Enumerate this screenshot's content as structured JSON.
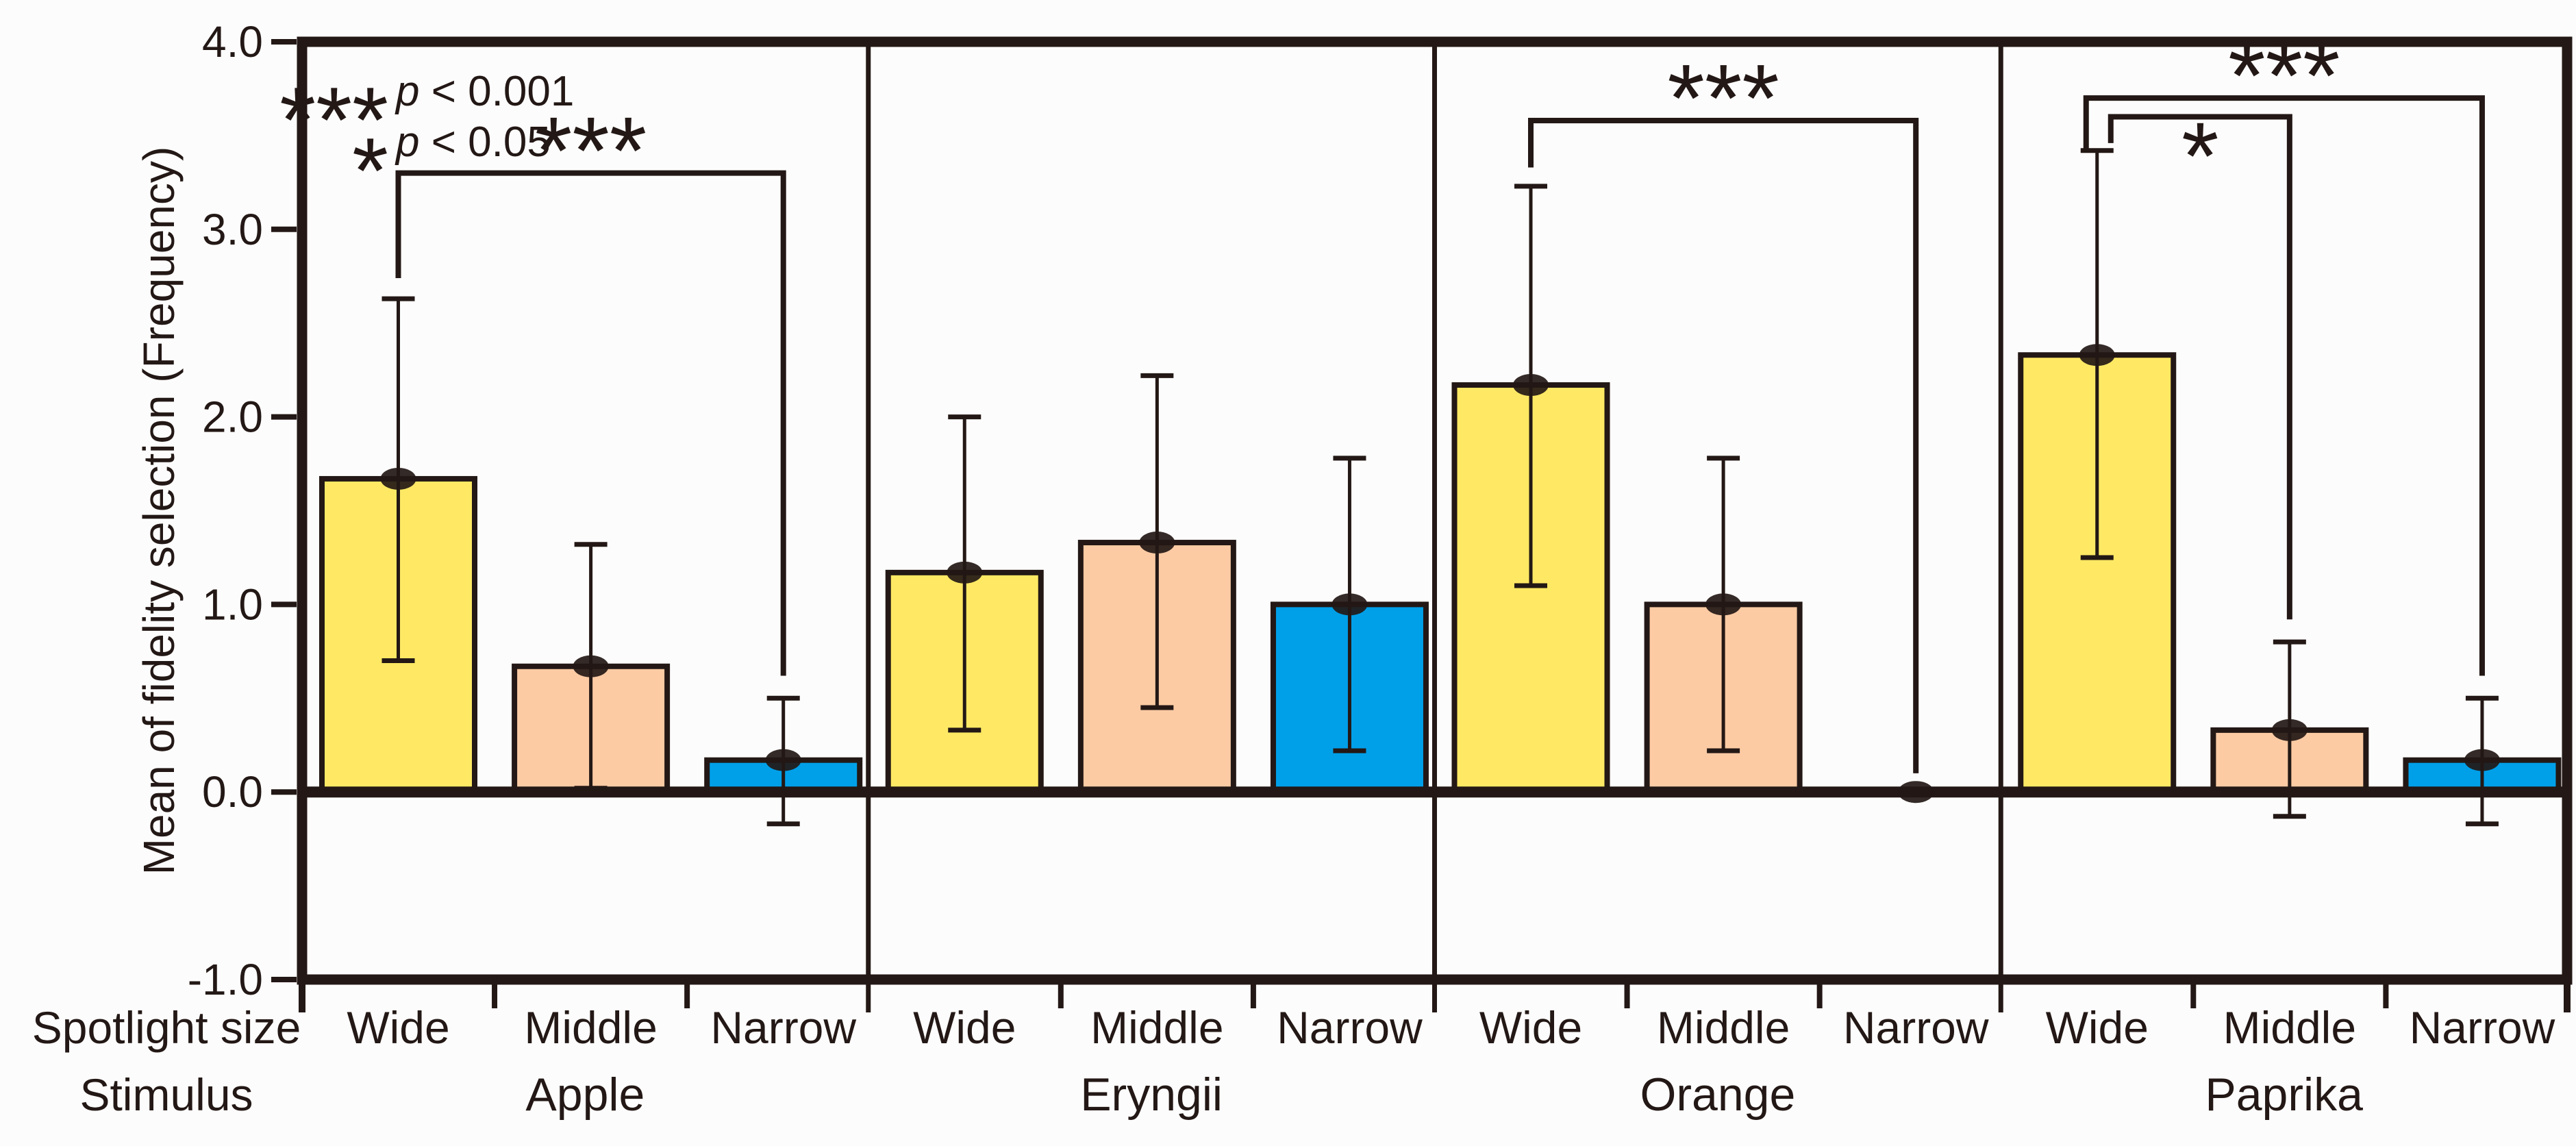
{
  "chart_data": {
    "type": "bar",
    "title": "",
    "ylabel": "Mean of fidelity selection (Frequency)",
    "xlabel": "",
    "ylim": [
      -1.0,
      4.0
    ],
    "y_ticks": [
      {
        "value": 4.0,
        "label": "4.0"
      },
      {
        "value": 3.0,
        "label": "3.0"
      },
      {
        "value": 2.0,
        "label": "2.0"
      },
      {
        "value": 1.0,
        "label": "1.0"
      },
      {
        "value": 0.0,
        "label": "0.0"
      },
      {
        "value": -1.0,
        "label": "-1.0"
      }
    ],
    "grid": false,
    "legend_position": "top-left-inside",
    "axis_rows": {
      "spotlight_size_label": "Spotlight size",
      "stimulus_label": "Stimulus"
    },
    "spotlight_sizes": [
      "Wide",
      "Middle",
      "Narrow"
    ],
    "colors": {
      "wide_bar": "#FFE964",
      "middle_bar": "#FCCBA4",
      "narrow_bar": "#00A0E9",
      "ink": "#231815",
      "background": "#FCFCFC"
    },
    "groups": [
      {
        "stimulus": "Apple",
        "bars": [
          {
            "size": "Wide",
            "mean": 1.67,
            "err_low": 0.7,
            "err_high": 2.63
          },
          {
            "size": "Middle",
            "mean": 0.67,
            "err_low": 0.02,
            "err_high": 1.32
          },
          {
            "size": "Narrow",
            "mean": 0.17,
            "err_low": -0.17,
            "err_high": 0.5
          }
        ]
      },
      {
        "stimulus": "Eryngii",
        "bars": [
          {
            "size": "Wide",
            "mean": 1.17,
            "err_low": 0.33,
            "err_high": 2.0
          },
          {
            "size": "Middle",
            "mean": 1.33,
            "err_low": 0.45,
            "err_high": 2.22
          },
          {
            "size": "Narrow",
            "mean": 1.0,
            "err_low": 0.22,
            "err_high": 1.78
          }
        ]
      },
      {
        "stimulus": "Orange",
        "bars": [
          {
            "size": "Wide",
            "mean": 2.17,
            "err_low": 1.1,
            "err_high": 3.23
          },
          {
            "size": "Middle",
            "mean": 1.0,
            "err_low": 0.22,
            "err_high": 1.78
          },
          {
            "size": "Narrow",
            "mean": 0.0,
            "err_low": null,
            "err_high": null,
            "marker_only": true
          }
        ]
      },
      {
        "stimulus": "Paprika",
        "bars": [
          {
            "size": "Wide",
            "mean": 2.33,
            "err_low": 1.25,
            "err_high": 3.42
          },
          {
            "size": "Middle",
            "mean": 0.33,
            "err_low": -0.13,
            "err_high": 0.8
          },
          {
            "size": "Narrow",
            "mean": 0.17,
            "err_low": -0.17,
            "err_high": 0.5
          }
        ]
      }
    ],
    "significance_legend": [
      {
        "symbol": "***",
        "text": "p < 0.001"
      },
      {
        "symbol": "*",
        "text": "p < 0.05"
      }
    ],
    "brackets": [
      {
        "group": 0,
        "from": 0,
        "to": 2,
        "label": "***",
        "top": 3.3,
        "left_drop_to": 2.74,
        "right_drop_to": 0.62,
        "label_side": "above",
        "from_x_offset": 0
      },
      {
        "group": 2,
        "from": 0,
        "to": 2,
        "label": "***",
        "top": 3.58,
        "left_drop_to": 3.33,
        "right_drop_to": 0.1,
        "label_side": "above",
        "from_x_offset": 0
      },
      {
        "group": 3,
        "from": 0,
        "to": 2,
        "label": "***",
        "top": 3.7,
        "left_drop_to": 3.42,
        "right_drop_to": 0.62,
        "label_side": "above",
        "from_x_offset": -16
      },
      {
        "group": 3,
        "from": 0,
        "to": 1,
        "label": "*",
        "top": 3.6,
        "left_drop_to": 3.46,
        "right_drop_to": 0.92,
        "label_side": "below",
        "from_x_offset": 20
      }
    ]
  }
}
